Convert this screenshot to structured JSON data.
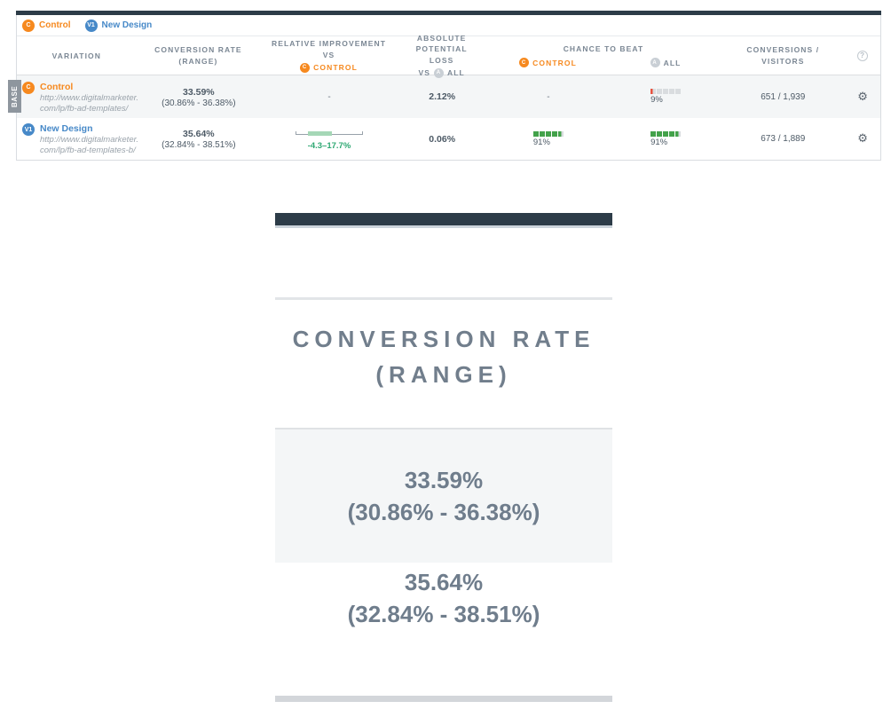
{
  "colors": {
    "orange": "#f6891f",
    "blue": "#4789c8",
    "green": "#43a24a",
    "red": "#e8523f",
    "square_empty": "#d9dcdf",
    "green_text": "#2fa873",
    "dark_bar": "#2d3c48"
  },
  "legend": {
    "items": [
      {
        "badge": "C",
        "label": "Control"
      },
      {
        "badge": "V1",
        "label": "New Design"
      }
    ]
  },
  "header": {
    "variation": "VARIATION",
    "conversion_rate_line1": "CONVERSION RATE",
    "conversion_rate_line2": "(RANGE)",
    "relative_improvement_line1": "RELATIVE IMPROVEMENT",
    "relative_improvement_line2": "VS",
    "relative_improvement_badge": "C",
    "relative_improvement_badge_label": "CONTROL",
    "absolute_loss_line1": "ABSOLUTE POTENTIAL",
    "absolute_loss_line2": "LOSS",
    "absolute_loss_vs": "VS",
    "absolute_loss_badge": "A",
    "absolute_loss_badge_label": "ALL",
    "chance_to_beat": "CHANCE TO BEAT",
    "chance_control_badge": "C",
    "chance_control_label": "CONTROL",
    "chance_all_badge": "A",
    "chance_all_label": "ALL",
    "conversions_line1": "CONVERSIONS /",
    "conversions_line2": "VISITORS",
    "help": "?"
  },
  "rows": [
    {
      "base_label": "BASE",
      "badge": "C",
      "name": "Control",
      "url_line1": "http://www.digitalmarketer.",
      "url_line2": "com/lp/fb-ad-templates/",
      "rate": "33.59%",
      "range": "(30.86% - 36.38%)",
      "relative_improvement": "-",
      "absolute_loss": "2.12%",
      "chance_control": "-",
      "chance_all_pct": "9%",
      "chance_all_value": 9,
      "conversions": "651 / 1,939",
      "gear": "⚙"
    },
    {
      "badge": "V1",
      "name": "New Design",
      "url_line1": "http://www.digitalmarketer.",
      "url_line2": "com/lp/fb-ad-templates-b/",
      "rate": "35.64%",
      "range": "(32.84% - 38.51%)",
      "improvement_range_label": "-4.3–17.7%",
      "absolute_loss": "0.06%",
      "chance_control_pct": "91%",
      "chance_control_value": 91,
      "chance_all_pct": "91%",
      "chance_all_value": 91,
      "conversions": "673 / 1,889",
      "gear": "⚙"
    }
  ],
  "magnified": {
    "column_title_line1": "CONVERSION RATE",
    "column_title_line2": "(RANGE)",
    "control_rate": "33.59%",
    "control_range": "(30.86% - 36.38%)",
    "variation_rate": "35.64%",
    "variation_range": "(32.84% - 38.51%)"
  }
}
